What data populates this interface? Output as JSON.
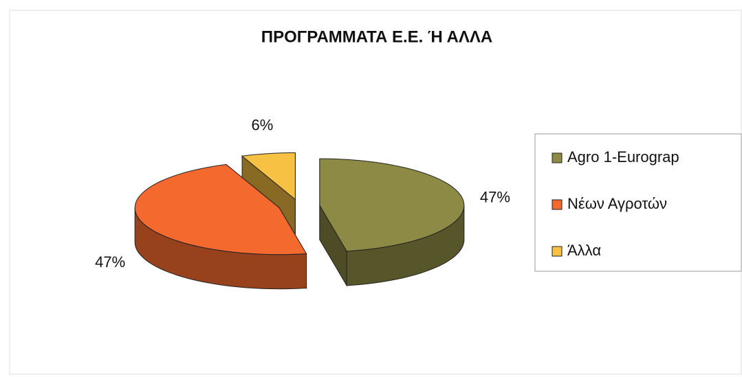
{
  "chart_data": {
    "type": "pie",
    "title": "ΠΡΟΓΡΑΜΜΑΤΑ Ε.Ε. Ή ΑΛΛΑ",
    "categories": [
      "Agro 1-Eurograp",
      "Νέων Αγροτών",
      "Άλλα"
    ],
    "values": [
      47,
      47,
      6
    ],
    "value_labels": [
      "47%",
      "47%",
      "6%"
    ],
    "colors": [
      "#8c8a45",
      "#f4692e",
      "#f7c143"
    ],
    "legend": "right"
  }
}
